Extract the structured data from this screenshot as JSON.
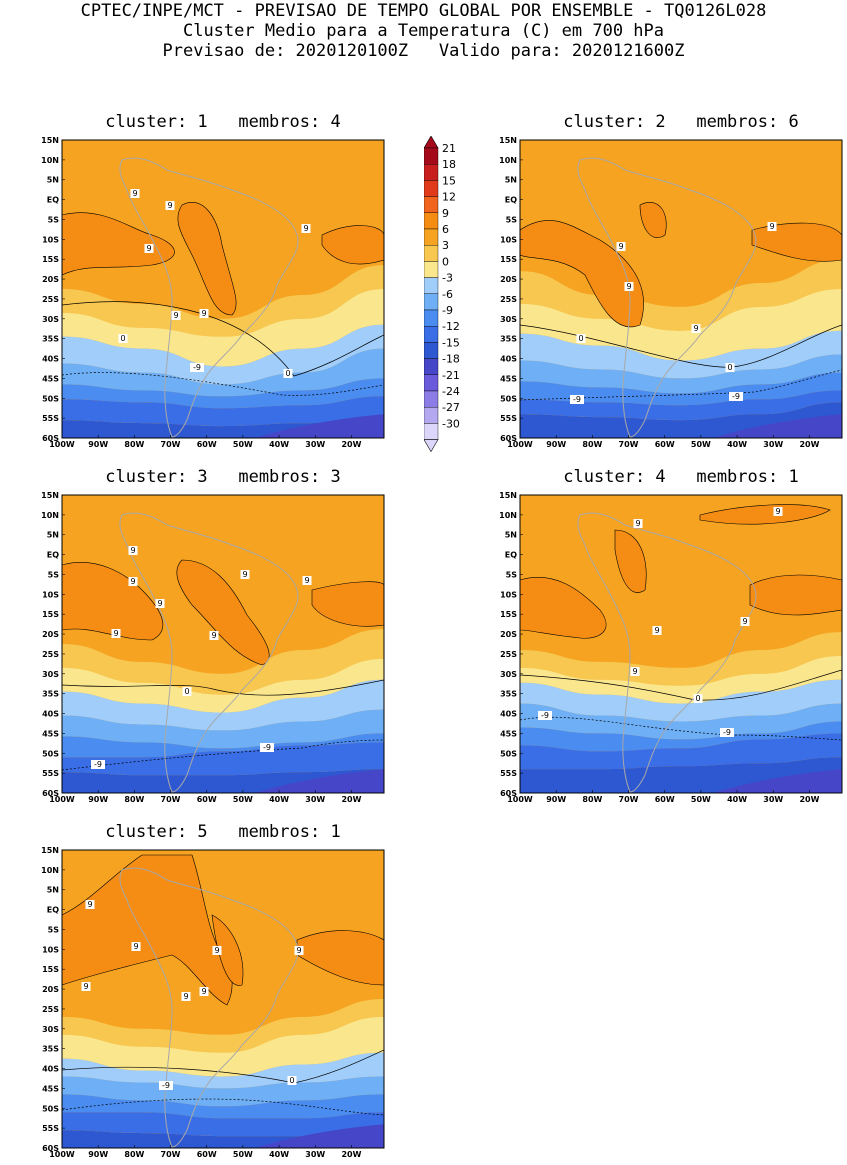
{
  "header": {
    "line1": "CPTEC/INPE/MCT - PREVISAO DE TEMPO GLOBAL POR ENSEMBLE - TQ0126L028",
    "line2": "Cluster Medio para a Temperatura (C) em 700 hPa",
    "line3": "Previsao de: 2020120100Z   Valido para: 2020121600Z"
  },
  "axes": {
    "lat_labels": [
      "15N",
      "10N",
      "5N",
      "EQ",
      "5S",
      "10S",
      "15S",
      "20S",
      "25S",
      "30S",
      "35S",
      "40S",
      "45S",
      "50S",
      "55S",
      "60S"
    ],
    "lon_labels": [
      "100W",
      "90W",
      "80W",
      "70W",
      "60W",
      "50W",
      "40W",
      "30W",
      "20W"
    ]
  },
  "colorbar": {
    "labels": [
      "21",
      "18",
      "15",
      "12",
      "9",
      "6",
      "3",
      "0",
      "-3",
      "-6",
      "-9",
      "-12",
      "-15",
      "-18",
      "-21",
      "-24",
      "-27",
      "-30"
    ],
    "colors": [
      "#a40a1a",
      "#c81e1e",
      "#e13a1a",
      "#f0641e",
      "#f58c14",
      "#f5a321",
      "#f8c750",
      "#fae68c",
      "#a0cdfa",
      "#6eaff6",
      "#4a8cf0",
      "#3a6ee6",
      "#2d58d2",
      "#4646c8",
      "#6a5adc",
      "#8c7ce6",
      "#b4a8f0",
      "#dcd7fa"
    ]
  },
  "clusters": [
    {
      "id": "1",
      "title": "cluster: 1   membros: 4",
      "labels": [
        "9",
        "9",
        "9",
        "9",
        "9",
        "9",
        "0",
        "0",
        "-9"
      ]
    },
    {
      "id": "2",
      "title": "cluster: 2   membros: 6",
      "labels": [
        "9",
        "9",
        "9",
        "9",
        "0",
        "0",
        "-9",
        "-9"
      ]
    },
    {
      "id": "3",
      "title": "cluster: 3   membros: 3",
      "labels": [
        "9",
        "9",
        "9",
        "9",
        "9",
        "9",
        "9",
        "0",
        "-9",
        "-9"
      ]
    },
    {
      "id": "4",
      "title": "cluster: 4   membros: 1",
      "labels": [
        "9",
        "9",
        "9",
        "9",
        "9",
        "0",
        "-9",
        "-9"
      ]
    },
    {
      "id": "5",
      "title": "cluster: 5   membros: 1",
      "labels": [
        "9",
        "9",
        "9",
        "9",
        "9",
        "9",
        "9",
        "0",
        "-9"
      ]
    }
  ]
}
